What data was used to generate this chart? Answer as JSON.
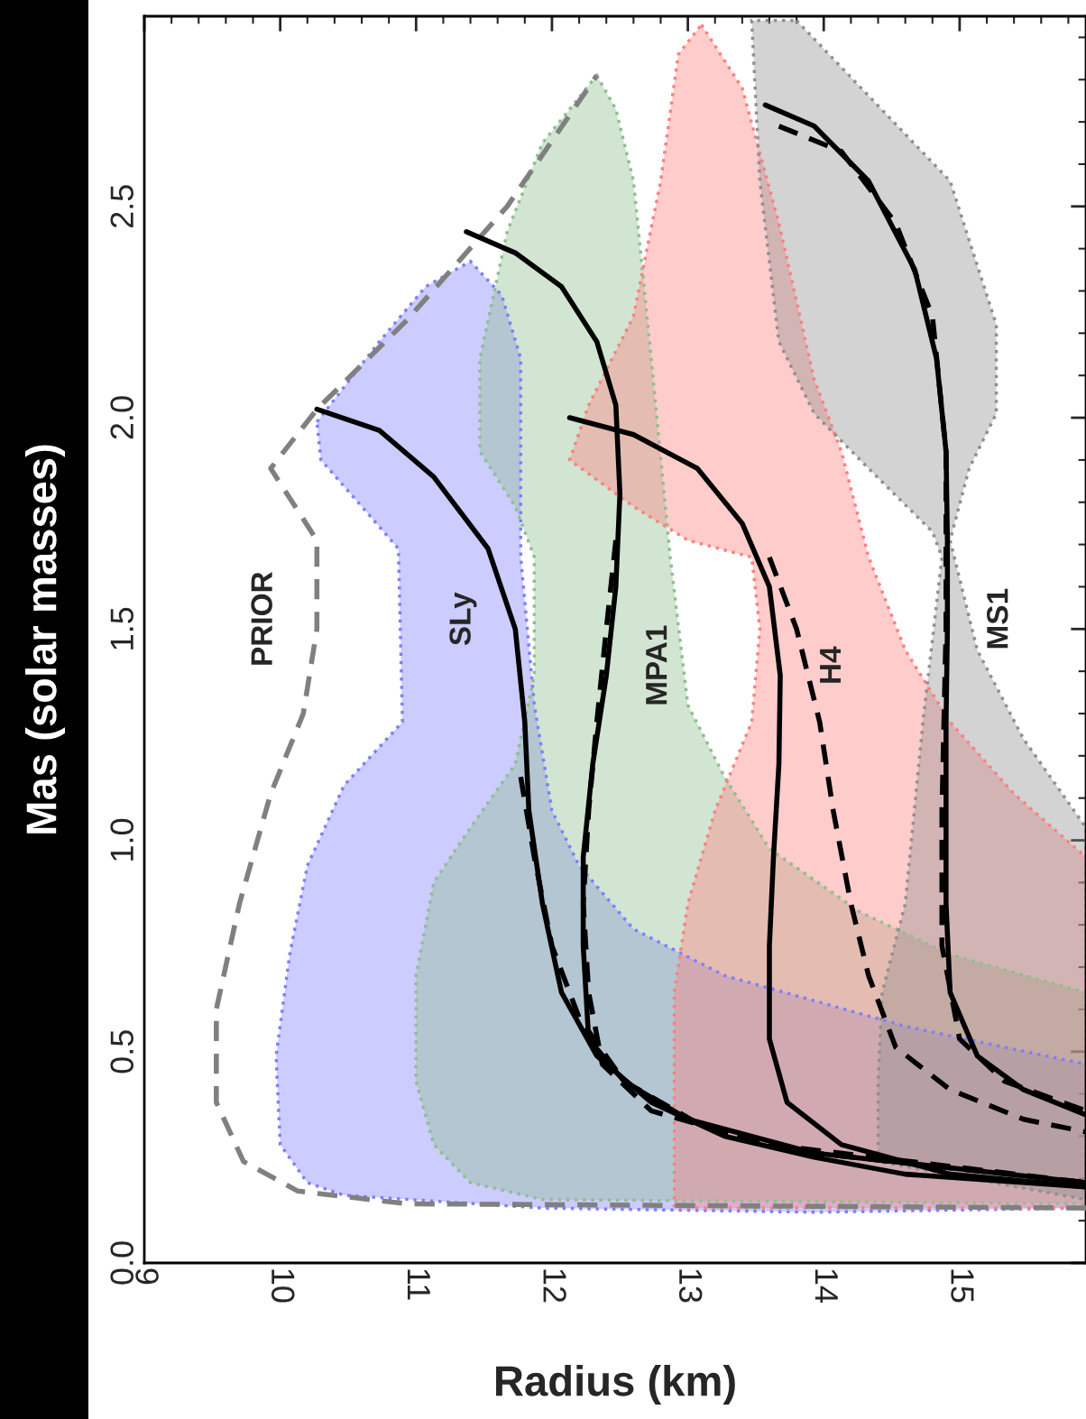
{
  "chart_data": {
    "type": "line",
    "xlabel": "Radius (km)",
    "ylabel": "Mas (solar masses)",
    "xlim": [
      9,
      15.93
    ],
    "ylim": [
      0,
      2.95
    ],
    "xticks": [
      9,
      10,
      11,
      12,
      13,
      14,
      15
    ],
    "yticks": [
      {
        "value": 0,
        "label": "0.0"
      },
      0.5,
      {
        "value": 1,
        "label": "1.0"
      },
      1.5,
      {
        "value": 2,
        "label": "2.0"
      },
      2.5
    ],
    "grid": false,
    "legend": false,
    "series": [
      {
        "type": "area",
        "color": "#7f7fff",
        "x": [
          10.27,
          10.73,
          11.07,
          11.4,
          11.63,
          11.77,
          11.77,
          11.87,
          12.0,
          12.2,
          12.6,
          13.27,
          14.6,
          15.93,
          15.93,
          13.93,
          11.93,
          10.47,
          10.2,
          10.0,
          9.97,
          10.07,
          10.2,
          10.47,
          10.9,
          10.87,
          10.6,
          10.3
        ],
        "values": [
          1.99,
          2.18,
          2.31,
          2.37,
          2.29,
          2.14,
          1.67,
          1.32,
          1.07,
          0.94,
          0.79,
          0.68,
          0.56,
          0.47,
          0.13,
          0.12,
          0.13,
          0.16,
          0.19,
          0.28,
          0.49,
          0.73,
          0.94,
          1.13,
          1.28,
          1.69,
          1.79,
          1.9
        ]
      },
      {
        "type": "area",
        "color": "#8fbf8f",
        "x": [
          12.33,
          12.47,
          12.6,
          12.73,
          12.87,
          13.0,
          13.27,
          13.6,
          14.27,
          14.93,
          15.93,
          15.93,
          11.93,
          11.4,
          11.13,
          11.0,
          11.0,
          11.13,
          11.4,
          11.73,
          11.87,
          11.87,
          11.73,
          11.47,
          11.47,
          11.67,
          11.93
        ],
        "values": [
          2.81,
          2.73,
          2.56,
          2.14,
          1.67,
          1.32,
          1.15,
          0.98,
          0.83,
          0.73,
          0.64,
          0.14,
          0.15,
          0.19,
          0.28,
          0.43,
          0.68,
          0.9,
          1.03,
          1.18,
          1.39,
          1.67,
          1.79,
          1.92,
          2.14,
          2.44,
          2.65
        ]
      },
      {
        "type": "area",
        "color": "#ff8080",
        "x": [
          13.1,
          13.4,
          13.67,
          13.93,
          14.13,
          14.33,
          14.6,
          14.93,
          15.4,
          15.93,
          15.93,
          12.9,
          12.9,
          13.0,
          13.2,
          13.47,
          13.53,
          13.47,
          13.0,
          12.6,
          12.13,
          12.27,
          12.6,
          12.8,
          12.93
        ],
        "values": [
          2.93,
          2.78,
          2.46,
          2.09,
          1.92,
          1.67,
          1.45,
          1.28,
          1.11,
          0.96,
          0.13,
          0.13,
          0.64,
          0.85,
          1.07,
          1.28,
          1.5,
          1.67,
          1.71,
          1.79,
          1.9,
          2.03,
          2.24,
          2.56,
          2.86
        ]
      },
      {
        "type": "area",
        "color": "#909090",
        "x": [
          13.8,
          14.93,
          15.27,
          15.27,
          15.07,
          14.93,
          15.13,
          15.47,
          15.93,
          15.93,
          14.4,
          14.4,
          14.43,
          14.6,
          14.73,
          14.87,
          14.8,
          14.33,
          13.93,
          13.67,
          13.53,
          13.47
        ],
        "values": [
          2.94,
          2.56,
          2.22,
          2.01,
          1.88,
          1.71,
          1.45,
          1.24,
          1.03,
          0.15,
          0.24,
          0.43,
          0.64,
          0.85,
          1.28,
          1.67,
          1.73,
          1.88,
          2.01,
          2.18,
          2.56,
          2.94
        ]
      },
      {
        "name": "PRIOR",
        "color": "#808080",
        "line_style": "dashed",
        "x": [
          15.93,
          10.93,
          10.13,
          9.73,
          9.53,
          9.53,
          9.7,
          9.93,
          10.17,
          10.27,
          10.27,
          9.93,
          10.27,
          10.93,
          11.67,
          12.33
        ],
        "values": [
          0.13,
          0.14,
          0.17,
          0.24,
          0.38,
          0.6,
          0.85,
          1.11,
          1.3,
          1.5,
          1.71,
          1.88,
          2.02,
          2.23,
          2.5,
          2.81
        ]
      },
      {
        "name": "SLy",
        "color": "#000000",
        "line_style": "solid",
        "x": [
          10.27,
          10.73,
          11.13,
          11.53,
          11.73,
          11.8,
          11.83,
          11.93,
          12.07,
          12.33,
          12.73,
          13.27,
          13.93,
          14.6,
          15.93
        ],
        "values": [
          2.02,
          1.97,
          1.86,
          1.69,
          1.5,
          1.28,
          1.07,
          0.85,
          0.64,
          0.49,
          0.38,
          0.3,
          0.25,
          0.21,
          0.18
        ]
      },
      {
        "color": "#000000",
        "line_style": "dashed",
        "x": [
          11.77,
          11.87,
          12.0,
          12.2,
          12.53,
          13.13,
          13.93,
          15.93
        ],
        "values": [
          1.15,
          0.96,
          0.75,
          0.58,
          0.43,
          0.32,
          0.26,
          0.19
        ]
      },
      {
        "name": "MPA1",
        "color": "#000000",
        "line_style": "solid",
        "x": [
          11.37,
          11.73,
          12.07,
          12.33,
          12.47,
          12.5,
          12.47,
          12.4,
          12.3,
          12.23,
          12.23,
          12.27,
          12.53,
          13.0,
          13.93,
          15.93
        ],
        "values": [
          2.44,
          2.39,
          2.31,
          2.18,
          2.03,
          1.82,
          1.6,
          1.39,
          1.18,
          0.96,
          0.75,
          0.53,
          0.43,
          0.34,
          0.26,
          0.19
        ]
      },
      {
        "color": "#000000",
        "line_style": "dashed",
        "x": [
          12.47,
          12.4,
          12.33,
          12.27,
          12.23,
          12.27,
          12.37,
          12.73,
          13.6,
          15.93
        ],
        "values": [
          1.71,
          1.5,
          1.28,
          1.07,
          0.85,
          0.64,
          0.47,
          0.36,
          0.28,
          0.19
        ]
      },
      {
        "name": "H4",
        "color": "#000000",
        "line_style": "solid",
        "x": [
          12.13,
          12.6,
          13.07,
          13.4,
          13.6,
          13.68,
          13.67,
          13.63,
          13.6,
          13.6,
          13.73,
          14.13,
          14.93,
          15.93
        ],
        "values": [
          2.0,
          1.96,
          1.88,
          1.75,
          1.6,
          1.39,
          1.18,
          0.96,
          0.75,
          0.53,
          0.38,
          0.28,
          0.21,
          0.18
        ]
      },
      {
        "color": "#000000",
        "line_style": "dashed",
        "x": [
          13.6,
          13.8,
          13.97,
          14.07,
          14.2,
          14.33,
          14.53,
          14.93,
          15.47,
          15.93
        ],
        "values": [
          1.67,
          1.5,
          1.28,
          1.07,
          0.85,
          0.68,
          0.51,
          0.41,
          0.34,
          0.31
        ]
      },
      {
        "name": "MS1",
        "color": "#000000",
        "line_style": "solid",
        "x": [
          13.57,
          13.93,
          14.33,
          14.67,
          14.83,
          14.9,
          14.91,
          14.91,
          14.9,
          14.9,
          14.9,
          14.93,
          15.13,
          15.47,
          15.93
        ],
        "values": [
          2.74,
          2.69,
          2.56,
          2.35,
          2.14,
          1.92,
          1.71,
          1.5,
          1.28,
          1.07,
          0.85,
          0.64,
          0.49,
          0.41,
          0.35
        ]
      },
      {
        "color": "#000000",
        "line_style": "dashed",
        "x": [
          13.67,
          14.13,
          14.53,
          14.8,
          14.9,
          14.9,
          14.87,
          14.87,
          15.0,
          15.33,
          15.93
        ],
        "values": [
          2.69,
          2.63,
          2.46,
          2.24,
          1.92,
          1.5,
          1.07,
          0.75,
          0.53,
          0.43,
          0.36
        ]
      }
    ]
  }
}
